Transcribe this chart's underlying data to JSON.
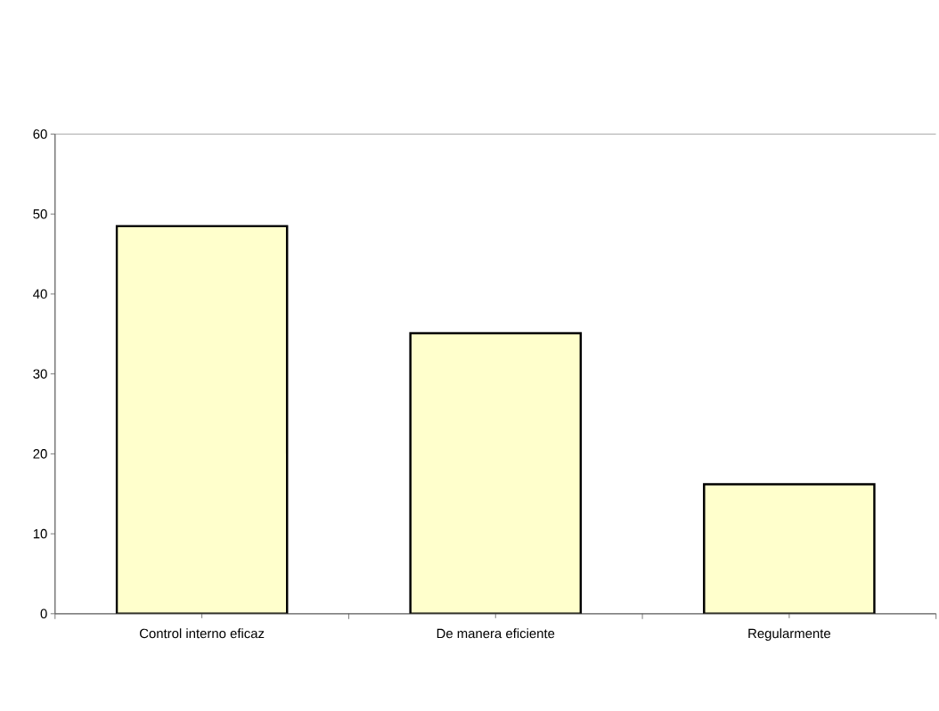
{
  "chart_data": {
    "type": "bar",
    "categories": [
      "Control interno eficaz",
      "De manera eficiente",
      "Regularmente"
    ],
    "values": [
      48.5,
      35.1,
      16.2
    ],
    "color": "#ffffcc",
    "ylim": [
      0,
      60
    ],
    "yticks": [
      0,
      10,
      20,
      30,
      40,
      50,
      60
    ]
  }
}
